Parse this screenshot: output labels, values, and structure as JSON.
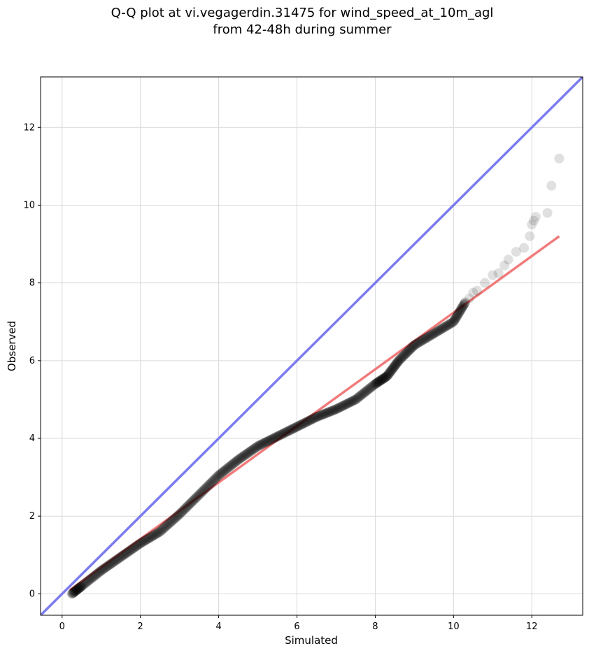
{
  "chart_data": {
    "type": "scatter",
    "title_line1": "Q-Q plot at vi.vegagerdin.31475 for wind_speed_at_10m_agl",
    "title_line2": "from 42-48h during summer",
    "xlabel": "Simulated",
    "ylabel": "Observed",
    "xlim": [
      -0.55,
      13.3
    ],
    "ylim": [
      -0.55,
      13.3
    ],
    "xticks": [
      0,
      2,
      4,
      6,
      8,
      10,
      12
    ],
    "yticks": [
      0,
      2,
      4,
      6,
      8,
      10,
      12
    ],
    "xtick_labels": [
      "0",
      "2",
      "4",
      "6",
      "8",
      "10",
      "12"
    ],
    "ytick_labels": [
      "0",
      "2",
      "4",
      "6",
      "8",
      "10",
      "12"
    ],
    "grid": true,
    "identity_line_color": "#7b7bf0",
    "fit_line_color": "#f07b7b",
    "point_color": "#000000",
    "fit_line": {
      "x": [
        0.2,
        12.7
      ],
      "y": [
        0.1,
        9.2
      ]
    },
    "quantile_path": {
      "x": [
        0.25,
        0.5,
        1.0,
        1.5,
        2.0,
        2.5,
        3.0,
        3.5,
        4.0,
        4.5,
        5.0,
        5.5,
        6.0,
        6.5,
        7.0,
        7.5,
        8.0,
        8.3,
        8.6,
        9.0,
        9.5,
        10.0,
        10.3
      ],
      "y": [
        0.0,
        0.2,
        0.6,
        0.95,
        1.3,
        1.6,
        2.05,
        2.55,
        3.05,
        3.45,
        3.8,
        4.05,
        4.3,
        4.55,
        4.75,
        5.0,
        5.4,
        5.6,
        6.0,
        6.4,
        6.7,
        7.0,
        7.5
      ]
    },
    "points": [
      {
        "x": 10.4,
        "y": 7.6
      },
      {
        "x": 10.5,
        "y": 7.75
      },
      {
        "x": 10.6,
        "y": 7.8
      },
      {
        "x": 10.8,
        "y": 8.0
      },
      {
        "x": 11.0,
        "y": 8.2
      },
      {
        "x": 11.15,
        "y": 8.25
      },
      {
        "x": 11.3,
        "y": 8.45
      },
      {
        "x": 11.4,
        "y": 8.6
      },
      {
        "x": 11.6,
        "y": 8.8
      },
      {
        "x": 11.8,
        "y": 8.9
      },
      {
        "x": 11.95,
        "y": 9.2
      },
      {
        "x": 12.0,
        "y": 9.5
      },
      {
        "x": 12.05,
        "y": 9.6
      },
      {
        "x": 12.1,
        "y": 9.7
      },
      {
        "x": 12.4,
        "y": 9.8
      },
      {
        "x": 12.5,
        "y": 10.5
      },
      {
        "x": 12.7,
        "y": 11.2
      }
    ]
  }
}
